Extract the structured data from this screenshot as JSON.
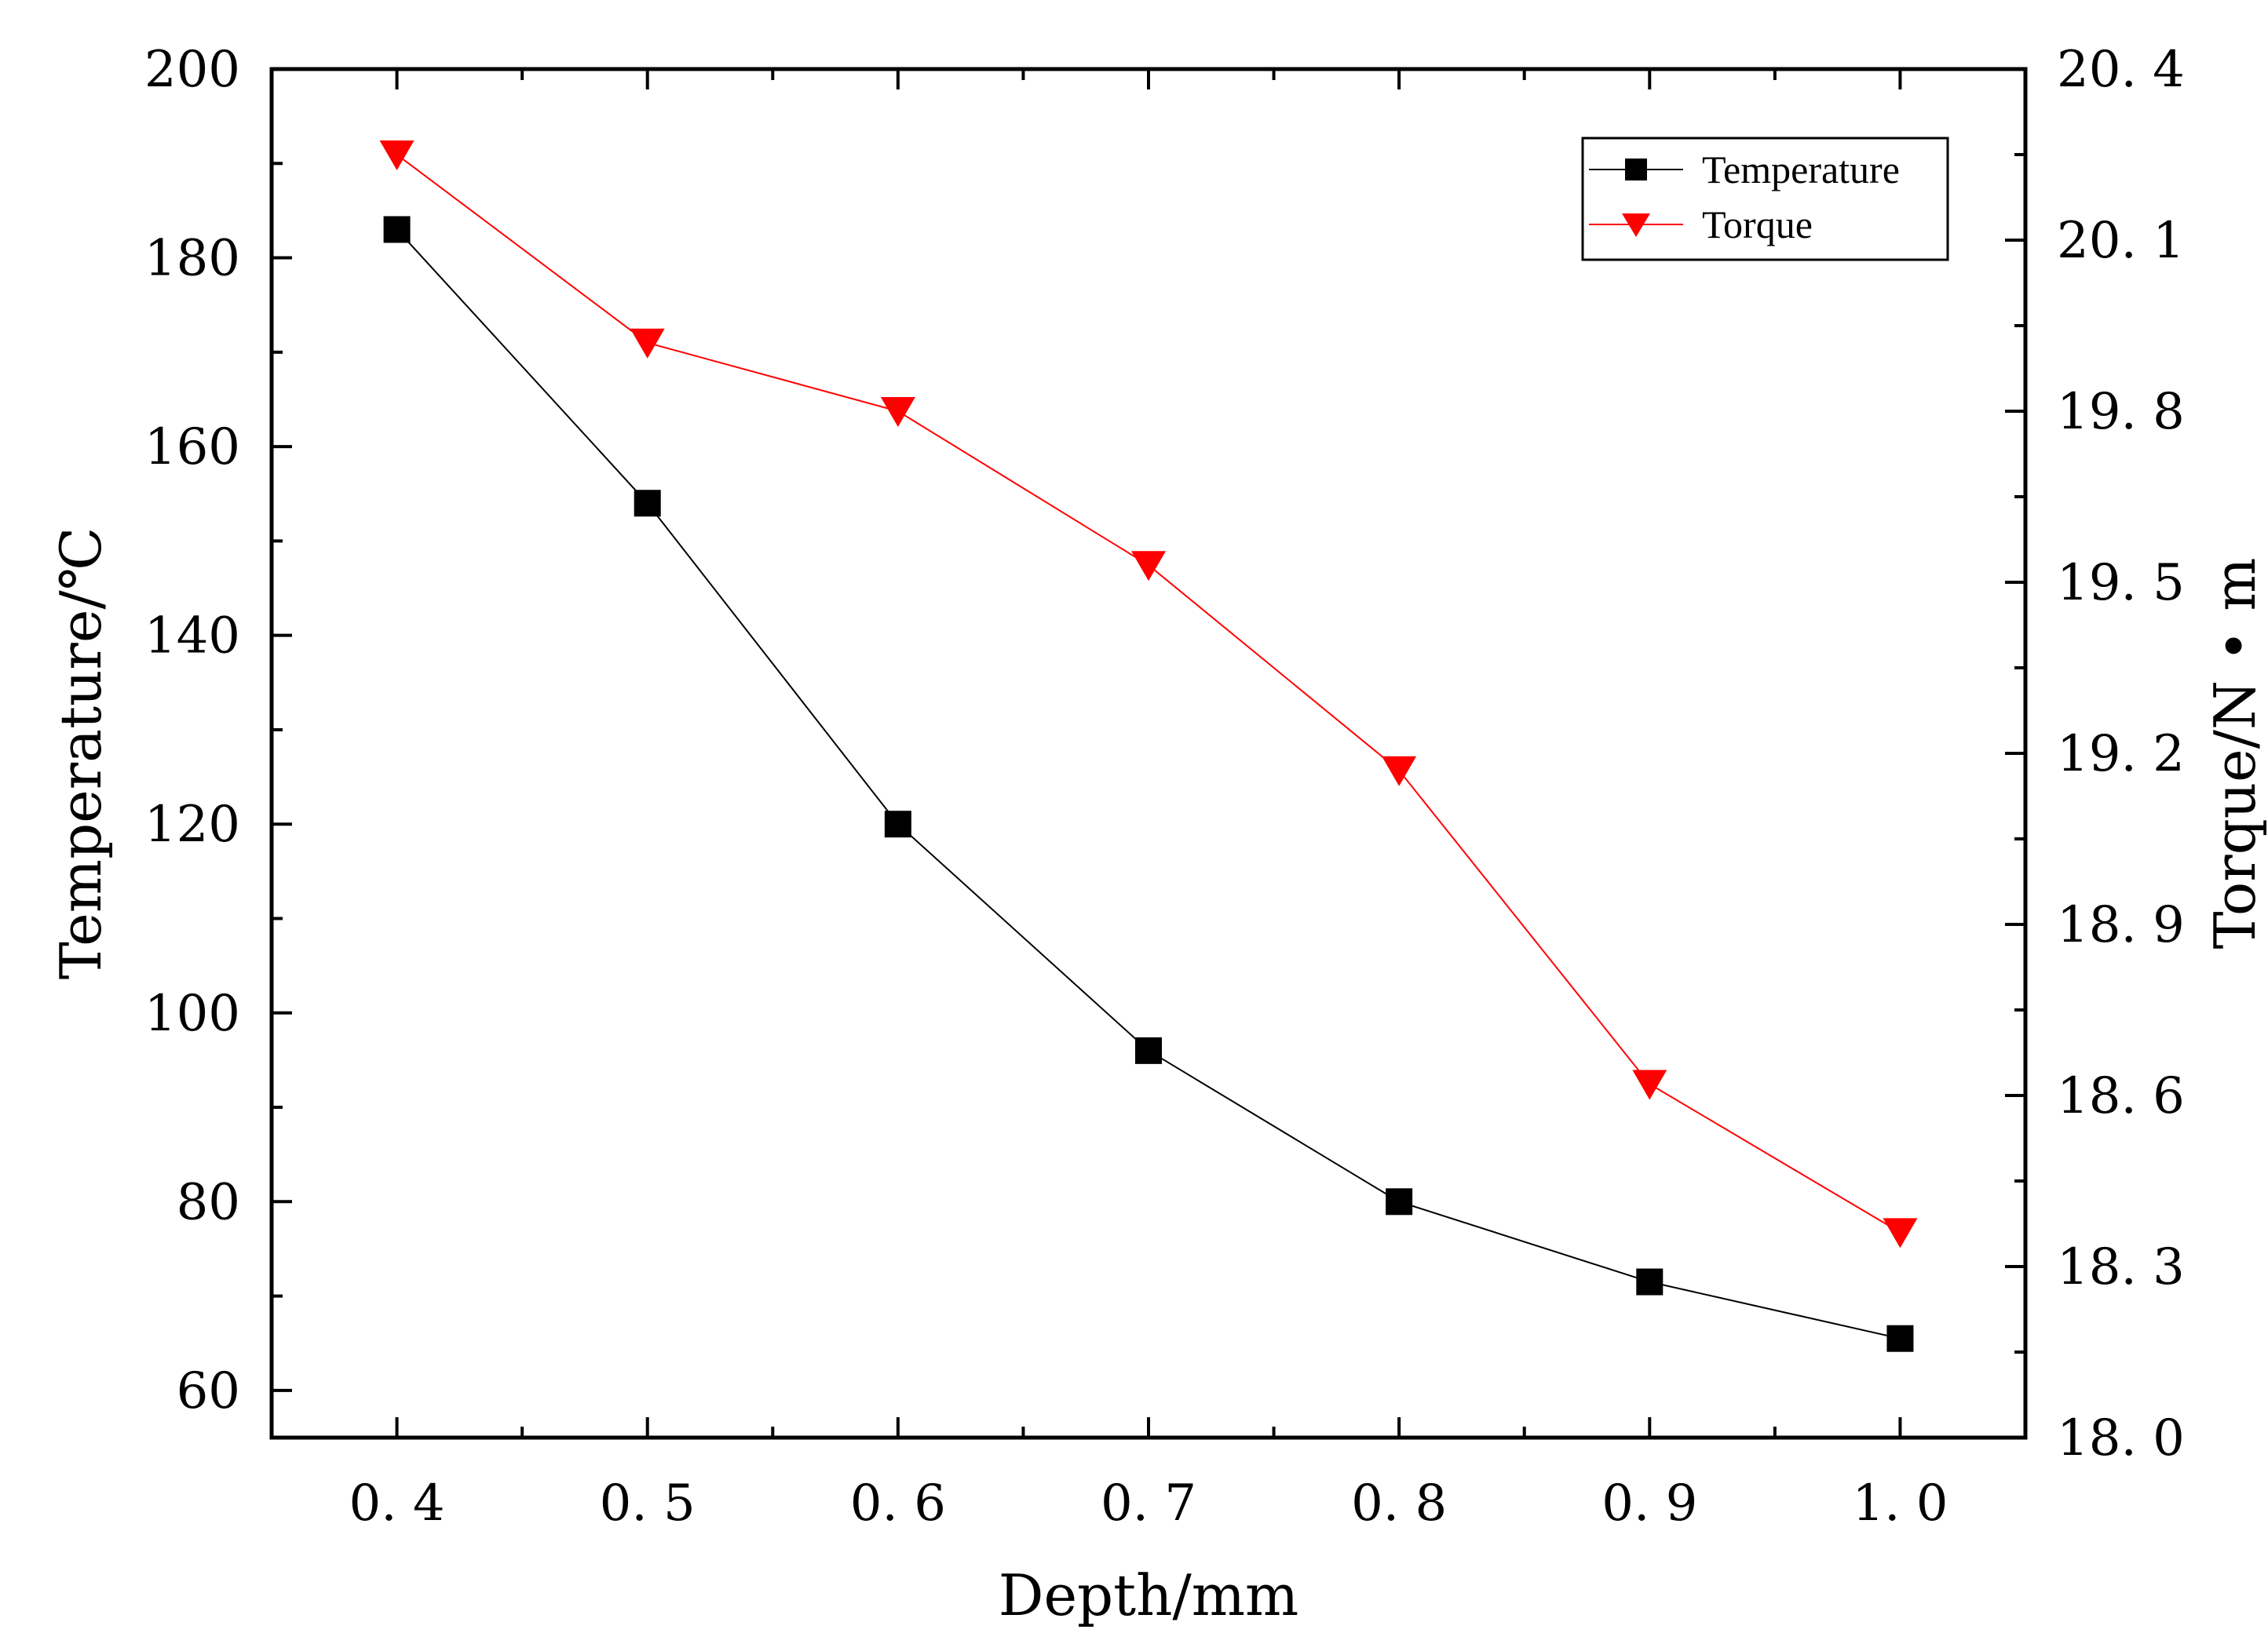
{
  "chart_data": {
    "type": "line",
    "title": "",
    "xlabel": "Depth/mm",
    "ylabel": "Temperature/℃",
    "y2label": "Torque/N • m",
    "x": [
      0.4,
      0.5,
      0.6,
      0.7,
      0.8,
      0.9,
      1.0
    ],
    "xlim": [
      0.35,
      1.05
    ],
    "ylim": [
      55,
      200
    ],
    "y2lim": [
      18.0,
      20.4
    ],
    "x_ticks": [
      "0. 4",
      "0. 5",
      "0. 6",
      "0. 7",
      "0. 8",
      "0. 9",
      "1. 0"
    ],
    "y_ticks": [
      "60",
      "80",
      "100",
      "120",
      "140",
      "160",
      "180",
      "200"
    ],
    "y2_ticks": [
      "18. 0",
      "18. 3",
      "18. 6",
      "18. 9",
      "19. 2",
      "19. 5",
      "19. 8",
      "20. 1",
      "20. 4"
    ],
    "grid": false,
    "legend_position": "top-right",
    "series": [
      {
        "name": "Temperature",
        "axis": "left",
        "color": "#000000",
        "marker": "square",
        "values": [
          183,
          154,
          120,
          96,
          80,
          71.5,
          65.5
        ]
      },
      {
        "name": "Torque",
        "axis": "right",
        "color": "#ff0000",
        "marker": "triangle-down",
        "values": [
          20.25,
          19.92,
          19.8,
          19.53,
          19.17,
          18.62,
          18.36
        ]
      }
    ]
  }
}
